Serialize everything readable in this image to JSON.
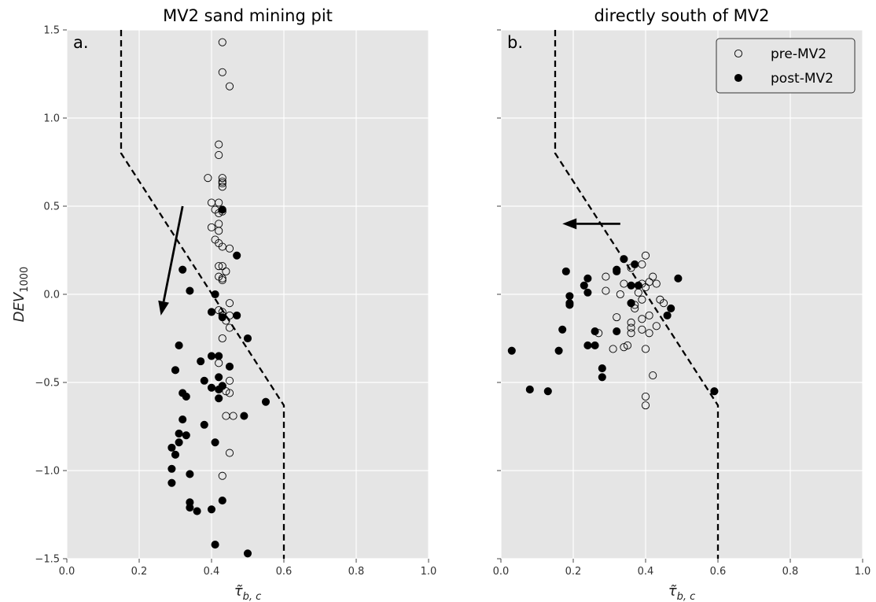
{
  "chart_data": [
    {
      "type": "scatter",
      "panel_label": "a.",
      "title": "MV2 sand mining pit",
      "xlabel": "τ̃b,c",
      "ylabel": "DEV1000",
      "xlim": [
        0.0,
        1.0
      ],
      "ylim": [
        -1.5,
        1.5
      ],
      "xticks": [
        "0.0",
        "0.2",
        "0.4",
        "0.6",
        "0.8",
        "1.0"
      ],
      "yticks": [
        "−1.5",
        "−1.0",
        "−0.5",
        "0.0",
        "0.5",
        "1.0",
        "1.5"
      ],
      "grid": true,
      "threshold_line": [
        [
          0.15,
          1.5
        ],
        [
          0.15,
          0.8
        ],
        [
          0.6,
          -0.63
        ],
        [
          0.6,
          -1.5
        ]
      ],
      "arrow": {
        "from": [
          0.32,
          0.5
        ],
        "to": [
          0.26,
          -0.12
        ]
      },
      "series": [
        {
          "name": "pre-MV2",
          "marker": "open",
          "points": [
            [
              0.43,
              1.43
            ],
            [
              0.43,
              1.26
            ],
            [
              0.45,
              1.18
            ],
            [
              0.42,
              0.85
            ],
            [
              0.42,
              0.79
            ],
            [
              0.39,
              0.66
            ],
            [
              0.43,
              0.66
            ],
            [
              0.43,
              0.64
            ],
            [
              0.43,
              0.63
            ],
            [
              0.43,
              0.61
            ],
            [
              0.4,
              0.52
            ],
            [
              0.42,
              0.52
            ],
            [
              0.41,
              0.48
            ],
            [
              0.42,
              0.46
            ],
            [
              0.43,
              0.47
            ],
            [
              0.42,
              0.4
            ],
            [
              0.4,
              0.38
            ],
            [
              0.42,
              0.36
            ],
            [
              0.41,
              0.31
            ],
            [
              0.42,
              0.29
            ],
            [
              0.43,
              0.27
            ],
            [
              0.45,
              0.26
            ],
            [
              0.42,
              0.16
            ],
            [
              0.43,
              0.16
            ],
            [
              0.44,
              0.13
            ],
            [
              0.42,
              0.1
            ],
            [
              0.43,
              0.09
            ],
            [
              0.43,
              0.08
            ],
            [
              0.45,
              -0.05
            ],
            [
              0.42,
              -0.09
            ],
            [
              0.43,
              -0.1
            ],
            [
              0.43,
              -0.12
            ],
            [
              0.45,
              -0.12
            ],
            [
              0.44,
              -0.15
            ],
            [
              0.45,
              -0.19
            ],
            [
              0.43,
              -0.25
            ],
            [
              0.42,
              -0.39
            ],
            [
              0.45,
              -0.49
            ],
            [
              0.43,
              -0.52
            ],
            [
              0.44,
              -0.55
            ],
            [
              0.45,
              -0.56
            ],
            [
              0.44,
              -0.69
            ],
            [
              0.46,
              -0.69
            ],
            [
              0.45,
              -0.9
            ],
            [
              0.43,
              -1.03
            ]
          ]
        },
        {
          "name": "post-MV2",
          "marker": "filled",
          "points": [
            [
              0.43,
              0.48
            ],
            [
              0.47,
              0.22
            ],
            [
              0.32,
              0.14
            ],
            [
              0.34,
              0.02
            ],
            [
              0.41,
              0.0
            ],
            [
              0.4,
              -0.1
            ],
            [
              0.43,
              -0.13
            ],
            [
              0.47,
              -0.12
            ],
            [
              0.5,
              -0.25
            ],
            [
              0.31,
              -0.29
            ],
            [
              0.4,
              -0.35
            ],
            [
              0.42,
              -0.35
            ],
            [
              0.37,
              -0.38
            ],
            [
              0.45,
              -0.41
            ],
            [
              0.3,
              -0.43
            ],
            [
              0.42,
              -0.47
            ],
            [
              0.38,
              -0.49
            ],
            [
              0.4,
              -0.53
            ],
            [
              0.42,
              -0.54
            ],
            [
              0.43,
              -0.52
            ],
            [
              0.32,
              -0.56
            ],
            [
              0.33,
              -0.58
            ],
            [
              0.42,
              -0.59
            ],
            [
              0.55,
              -0.61
            ],
            [
              0.49,
              -0.69
            ],
            [
              0.32,
              -0.71
            ],
            [
              0.38,
              -0.74
            ],
            [
              0.31,
              -0.79
            ],
            [
              0.33,
              -0.8
            ],
            [
              0.31,
              -0.84
            ],
            [
              0.41,
              -0.84
            ],
            [
              0.29,
              -0.87
            ],
            [
              0.3,
              -0.91
            ],
            [
              0.29,
              -0.99
            ],
            [
              0.34,
              -1.02
            ],
            [
              0.29,
              -1.07
            ],
            [
              0.43,
              -1.17
            ],
            [
              0.34,
              -1.18
            ],
            [
              0.34,
              -1.21
            ],
            [
              0.4,
              -1.22
            ],
            [
              0.36,
              -1.23
            ],
            [
              0.41,
              -1.42
            ],
            [
              0.5,
              -1.47
            ]
          ]
        }
      ]
    },
    {
      "type": "scatter",
      "panel_label": "b.",
      "title": "directly south of MV2",
      "xlabel": "τ̃b,c",
      "ylabel": "",
      "xlim": [
        0.0,
        1.0
      ],
      "ylim": [
        -1.5,
        1.5
      ],
      "xticks": [
        "0.0",
        "0.2",
        "0.4",
        "0.6",
        "0.8",
        "1.0"
      ],
      "yticks": [],
      "grid": true,
      "legend_position": "top-right",
      "threshold_line": [
        [
          0.15,
          1.5
        ],
        [
          0.15,
          0.8
        ],
        [
          0.6,
          -0.63
        ],
        [
          0.6,
          -1.5
        ]
      ],
      "arrow": {
        "from": [
          0.33,
          0.4
        ],
        "to": [
          0.17,
          0.4
        ]
      },
      "series": [
        {
          "name": "pre-MV2",
          "marker": "open",
          "points": [
            [
              0.4,
              0.22
            ],
            [
              0.39,
              0.17
            ],
            [
              0.36,
              0.15
            ],
            [
              0.42,
              0.1
            ],
            [
              0.29,
              0.1
            ],
            [
              0.41,
              0.07
            ],
            [
              0.43,
              0.06
            ],
            [
              0.34,
              0.06
            ],
            [
              0.39,
              0.06
            ],
            [
              0.4,
              0.04
            ],
            [
              0.29,
              0.02
            ],
            [
              0.38,
              0.01
            ],
            [
              0.33,
              0.0
            ],
            [
              0.44,
              -0.03
            ],
            [
              0.39,
              -0.03
            ],
            [
              0.45,
              -0.05
            ],
            [
              0.37,
              -0.06
            ],
            [
              0.37,
              -0.08
            ],
            [
              0.41,
              -0.12
            ],
            [
              0.32,
              -0.13
            ],
            [
              0.39,
              -0.14
            ],
            [
              0.36,
              -0.16
            ],
            [
              0.43,
              -0.18
            ],
            [
              0.36,
              -0.19
            ],
            [
              0.39,
              -0.2
            ],
            [
              0.41,
              -0.22
            ],
            [
              0.27,
              -0.22
            ],
            [
              0.36,
              -0.22
            ],
            [
              0.35,
              -0.29
            ],
            [
              0.34,
              -0.3
            ],
            [
              0.31,
              -0.31
            ],
            [
              0.4,
              -0.31
            ],
            [
              0.42,
              -0.46
            ],
            [
              0.4,
              -0.58
            ],
            [
              0.4,
              -0.63
            ]
          ]
        },
        {
          "name": "post-MV2",
          "marker": "filled",
          "points": [
            [
              0.34,
              0.2
            ],
            [
              0.37,
              0.17
            ],
            [
              0.32,
              0.14
            ],
            [
              0.32,
              0.13
            ],
            [
              0.18,
              0.13
            ],
            [
              0.24,
              0.09
            ],
            [
              0.49,
              0.09
            ],
            [
              0.23,
              0.05
            ],
            [
              0.36,
              0.05
            ],
            [
              0.38,
              0.05
            ],
            [
              0.24,
              0.01
            ],
            [
              0.19,
              -0.01
            ],
            [
              0.19,
              -0.05
            ],
            [
              0.19,
              -0.06
            ],
            [
              0.36,
              -0.05
            ],
            [
              0.36,
              -0.05
            ],
            [
              0.47,
              -0.08
            ],
            [
              0.46,
              -0.12
            ],
            [
              0.17,
              -0.2
            ],
            [
              0.26,
              -0.21
            ],
            [
              0.32,
              -0.21
            ],
            [
              0.24,
              -0.29
            ],
            [
              0.26,
              -0.29
            ],
            [
              0.03,
              -0.32
            ],
            [
              0.16,
              -0.32
            ],
            [
              0.28,
              -0.42
            ],
            [
              0.28,
              -0.47
            ],
            [
              0.08,
              -0.54
            ],
            [
              0.13,
              -0.55
            ],
            [
              0.59,
              -0.55
            ]
          ]
        }
      ]
    }
  ]
}
